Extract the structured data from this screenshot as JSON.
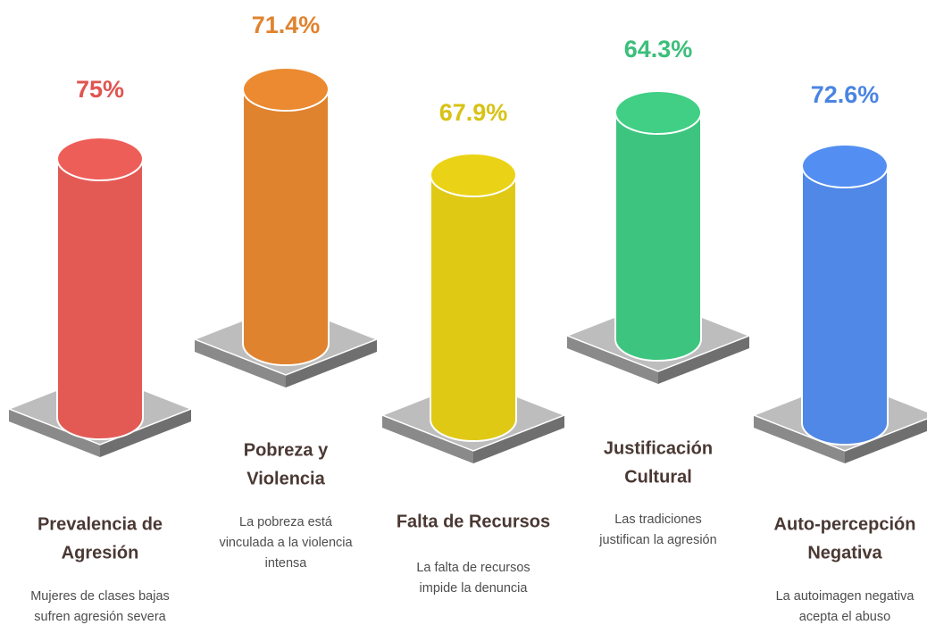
{
  "items": [
    {
      "value": "75%",
      "title": [
        "Prevalencia de",
        "Agresión"
      ],
      "description": [
        "Mujeres de clases bajas",
        "sufren agresión severa"
      ]
    },
    {
      "value": "71.4%",
      "title": [
        "Pobreza y",
        "Violencia"
      ],
      "description": [
        "La pobreza está",
        "vinculada a la violencia",
        "intensa"
      ]
    },
    {
      "value": "67.9%",
      "title": [
        "Falta de Recursos"
      ],
      "description": [
        "La falta de recursos",
        "impide la denuncia"
      ]
    },
    {
      "value": "64.3%",
      "title": [
        "Justificación",
        "Cultural"
      ],
      "description": [
        "Las tradiciones",
        "justifican la agresión"
      ]
    },
    {
      "value": "72.6%",
      "title": [
        "Auto-percepción",
        "Negativa"
      ],
      "description": [
        "La autoimagen negativa",
        "acepta el abuso"
      ]
    }
  ]
}
